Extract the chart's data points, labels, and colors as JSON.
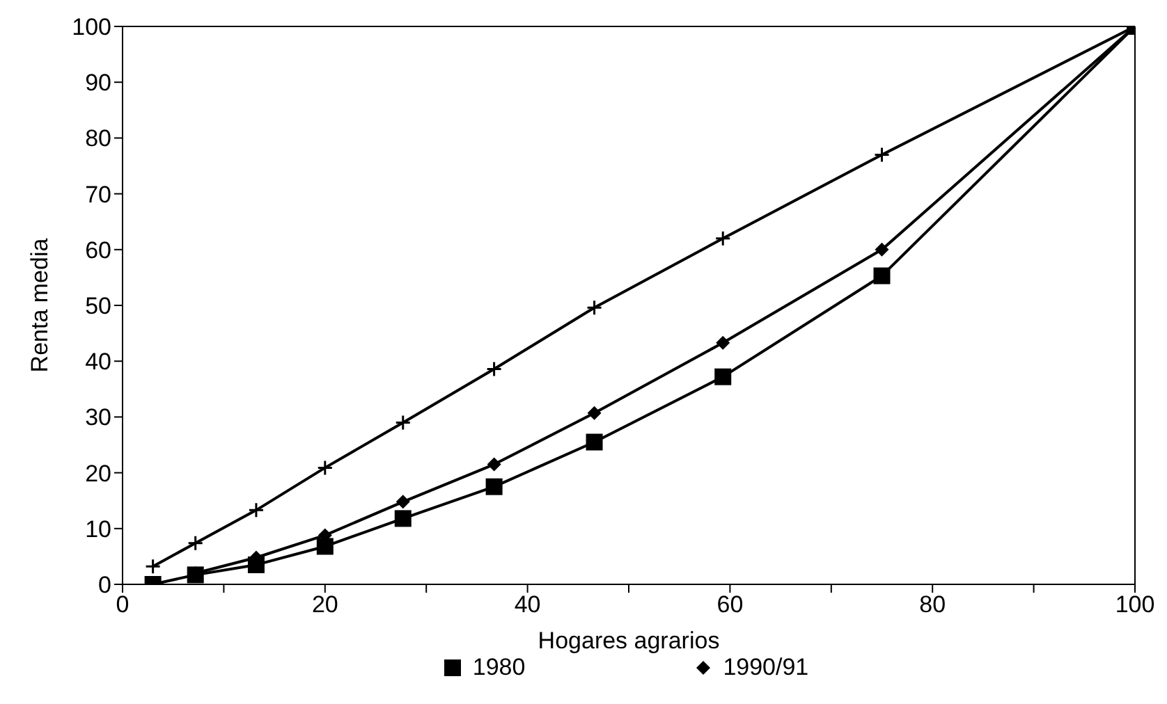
{
  "chart_data": {
    "type": "line",
    "xlabel": "Hogares agrarios",
    "ylabel": "Renta media",
    "x": [
      3,
      7.2,
      13.2,
      20,
      27.7,
      36.7,
      46.6,
      59.3,
      75,
      100
    ],
    "series": [
      {
        "values": [
          3.2,
          7.4,
          13.3,
          20.9,
          29,
          38.6,
          49.6,
          62,
          77,
          100
        ],
        "color": "#000000",
        "marker": "cross"
      },
      {
        "name": "1980",
        "values": [
          0,
          1.7,
          3.5,
          6.8,
          11.8,
          17.5,
          25.5,
          37.2,
          55.3,
          100
        ],
        "color": "#000000",
        "marker": "square"
      },
      {
        "name": "1990/91",
        "values": [
          null,
          2,
          4.8,
          8.8,
          14.8,
          21.5,
          30.7,
          43.3,
          60,
          100
        ],
        "color": "#000000",
        "marker": "diamond"
      }
    ],
    "xlim": [
      0,
      100
    ],
    "xticks": [
      0,
      {
        "value": 10,
        "label": null
      },
      20,
      {
        "value": 30,
        "label": null
      },
      40,
      {
        "value": 50,
        "label": null
      },
      60,
      {
        "value": 70,
        "label": null
      },
      80,
      {
        "value": 90,
        "label": null
      },
      100
    ],
    "ylim": [
      0,
      100
    ],
    "yticks": [
      0,
      10,
      20,
      30,
      40,
      50,
      60,
      70,
      80,
      90,
      100
    ],
    "grid": false,
    "legend": "bottom",
    "line_style": "solid"
  }
}
